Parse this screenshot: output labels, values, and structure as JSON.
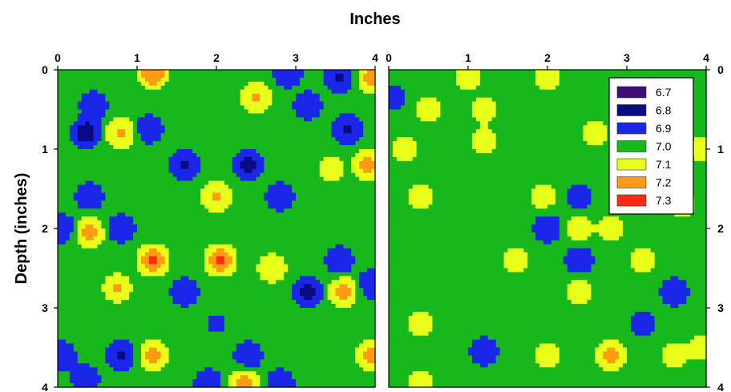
{
  "chart_data": {
    "type": "heatmap",
    "xlabel": "Inches",
    "ylabel": "Depth (inches)",
    "xticks": [
      "0",
      "1",
      "2",
      "3",
      "4"
    ],
    "yticks": [
      "0",
      "1",
      "2",
      "3",
      "4"
    ],
    "xlim": [
      0,
      4
    ],
    "ylim": [
      0,
      4
    ],
    "legend_position": "top-right",
    "legend": [
      {
        "label": "6.7",
        "color": "#3d0d7a"
      },
      {
        "label": "6.8",
        "color": "#0a0a82"
      },
      {
        "label": "6.9",
        "color": "#1a26e8"
      },
      {
        "label": "7.0",
        "color": "#16b81c"
      },
      {
        "label": "7.1",
        "color": "#e8ff1a"
      },
      {
        "label": "7.2",
        "color": "#ff9c14"
      },
      {
        "label": "7.3",
        "color": "#ff2a14"
      }
    ],
    "panels": [
      {
        "name": "left",
        "points": [
          {
            "x": 1.2,
            "y": 0.05,
            "v": 7.25
          },
          {
            "x": 0.45,
            "y": 0.45,
            "v": 6.85
          },
          {
            "x": 2.5,
            "y": 0.35,
            "v": 7.18
          },
          {
            "x": 2.9,
            "y": 0.05,
            "v": 6.85
          },
          {
            "x": 3.55,
            "y": 0.1,
            "v": 6.82
          },
          {
            "x": 3.95,
            "y": 0.1,
            "v": 7.2
          },
          {
            "x": 3.15,
            "y": 0.45,
            "v": 6.86
          },
          {
            "x": 0.35,
            "y": 0.8,
            "v": 6.78
          },
          {
            "x": 0.8,
            "y": 0.8,
            "v": 7.18
          },
          {
            "x": 1.15,
            "y": 0.75,
            "v": 6.86
          },
          {
            "x": 1.6,
            "y": 1.2,
            "v": 6.82
          },
          {
            "x": 2.4,
            "y": 1.2,
            "v": 6.8
          },
          {
            "x": 3.65,
            "y": 0.75,
            "v": 6.82
          },
          {
            "x": 3.9,
            "y": 1.2,
            "v": 7.2
          },
          {
            "x": 3.45,
            "y": 1.25,
            "v": 7.12
          },
          {
            "x": 0.4,
            "y": 1.6,
            "v": 6.86
          },
          {
            "x": 2.0,
            "y": 1.6,
            "v": 7.18
          },
          {
            "x": 2.8,
            "y": 1.6,
            "v": 6.86
          },
          {
            "x": 0.05,
            "y": 2.0,
            "v": 6.86
          },
          {
            "x": 0.4,
            "y": 2.05,
            "v": 7.2
          },
          {
            "x": 0.8,
            "y": 2.0,
            "v": 6.86
          },
          {
            "x": 1.2,
            "y": 2.4,
            "v": 7.28
          },
          {
            "x": 0.75,
            "y": 2.75,
            "v": 7.16
          },
          {
            "x": 2.05,
            "y": 2.4,
            "v": 7.28
          },
          {
            "x": 2.7,
            "y": 2.5,
            "v": 7.14
          },
          {
            "x": 1.6,
            "y": 2.8,
            "v": 6.86
          },
          {
            "x": 3.15,
            "y": 2.8,
            "v": 6.8
          },
          {
            "x": 3.6,
            "y": 2.8,
            "v": 7.2
          },
          {
            "x": 3.55,
            "y": 2.4,
            "v": 6.86
          },
          {
            "x": 3.95,
            "y": 2.7,
            "v": 6.86
          },
          {
            "x": 2.0,
            "y": 3.2,
            "v": 6.92
          },
          {
            "x": 0.05,
            "y": 3.6,
            "v": 6.86
          },
          {
            "x": 0.8,
            "y": 3.6,
            "v": 6.82
          },
          {
            "x": 1.2,
            "y": 3.6,
            "v": 7.2
          },
          {
            "x": 2.4,
            "y": 3.6,
            "v": 6.86
          },
          {
            "x": 3.95,
            "y": 3.6,
            "v": 7.2
          },
          {
            "x": 1.9,
            "y": 3.95,
            "v": 6.86
          },
          {
            "x": 2.35,
            "y": 3.95,
            "v": 7.2
          },
          {
            "x": 2.8,
            "y": 3.95,
            "v": 6.86
          },
          {
            "x": 0.35,
            "y": 3.9,
            "v": 6.86
          }
        ]
      },
      {
        "name": "right",
        "points": [
          {
            "x": 0.05,
            "y": 0.35,
            "v": 6.88
          },
          {
            "x": 0.5,
            "y": 0.5,
            "v": 7.12
          },
          {
            "x": 1.2,
            "y": 0.5,
            "v": 7.12
          },
          {
            "x": 1.0,
            "y": 0.1,
            "v": 7.12
          },
          {
            "x": 1.2,
            "y": 0.9,
            "v": 7.12
          },
          {
            "x": 0.2,
            "y": 1.0,
            "v": 7.1
          },
          {
            "x": 0.4,
            "y": 1.6,
            "v": 7.1
          },
          {
            "x": 2.0,
            "y": 0.1,
            "v": 7.1
          },
          {
            "x": 2.6,
            "y": 0.8,
            "v": 7.1
          },
          {
            "x": 3.95,
            "y": 1.0,
            "v": 7.12
          },
          {
            "x": 3.7,
            "y": 1.7,
            "v": 7.1
          },
          {
            "x": 2.4,
            "y": 1.6,
            "v": 6.88
          },
          {
            "x": 1.95,
            "y": 1.6,
            "v": 7.1
          },
          {
            "x": 2.0,
            "y": 2.0,
            "v": 6.86
          },
          {
            "x": 2.4,
            "y": 2.0,
            "v": 7.1
          },
          {
            "x": 2.4,
            "y": 2.4,
            "v": 6.86
          },
          {
            "x": 1.6,
            "y": 2.4,
            "v": 7.12
          },
          {
            "x": 2.8,
            "y": 2.0,
            "v": 7.12
          },
          {
            "x": 3.2,
            "y": 2.4,
            "v": 7.12
          },
          {
            "x": 3.6,
            "y": 2.8,
            "v": 6.86
          },
          {
            "x": 2.4,
            "y": 2.8,
            "v": 7.1
          },
          {
            "x": 3.2,
            "y": 3.2,
            "v": 6.88
          },
          {
            "x": 0.4,
            "y": 3.2,
            "v": 7.1
          },
          {
            "x": 1.2,
            "y": 3.55,
            "v": 6.86
          },
          {
            "x": 2.0,
            "y": 3.6,
            "v": 7.1
          },
          {
            "x": 2.8,
            "y": 3.6,
            "v": 7.2
          },
          {
            "x": 3.6,
            "y": 3.6,
            "v": 7.1
          },
          {
            "x": 0.4,
            "y": 3.95,
            "v": 7.1
          },
          {
            "x": 3.95,
            "y": 3.5,
            "v": 7.1
          }
        ]
      }
    ]
  }
}
